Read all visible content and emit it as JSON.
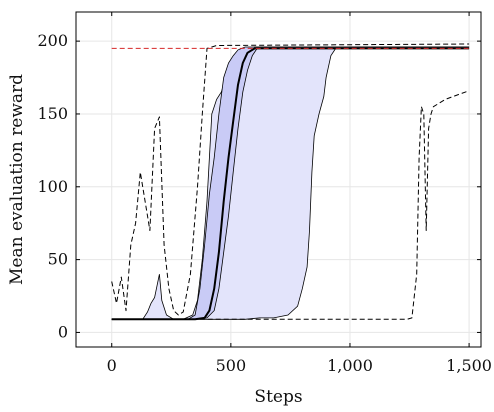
{
  "chart_data": {
    "type": "line",
    "xlabel": "Steps",
    "ylabel": "Mean evaluation reward",
    "xlim": [
      -150,
      1550
    ],
    "ylim": [
      -10,
      220
    ],
    "xticks": [
      0,
      500,
      1000,
      1500
    ],
    "xtick_labels": [
      "0",
      "500",
      "1,000",
      "1,500"
    ],
    "yticks": [
      0,
      50,
      100,
      150,
      200
    ],
    "ytick_labels": [
      "0",
      "50",
      "100",
      "150",
      "200"
    ],
    "grid": true,
    "colors": {
      "outer_band": "#e3e4fb",
      "inner_band": "#c9cbf6",
      "band_edge": "#000000",
      "median": "#000000",
      "max_min": "#000000",
      "reference": "#d62728"
    },
    "bands": [
      {
        "role": "outer",
        "lower": [
          [
            0,
            9
          ],
          [
            300,
            9
          ],
          [
            450,
            9
          ],
          [
            560,
            9
          ],
          [
            620,
            10
          ],
          [
            680,
            10
          ],
          [
            740,
            12
          ],
          [
            780,
            18
          ],
          [
            800,
            30
          ],
          [
            820,
            45
          ],
          [
            830,
            70
          ],
          [
            840,
            110
          ],
          [
            850,
            135
          ],
          [
            870,
            150
          ],
          [
            890,
            162
          ],
          [
            900,
            175
          ],
          [
            920,
            190
          ],
          [
            940,
            195
          ],
          [
            1000,
            196
          ],
          [
            1500,
            196
          ]
        ],
        "upper": [
          [
            0,
            9
          ],
          [
            130,
            9
          ],
          [
            150,
            14
          ],
          [
            165,
            20
          ],
          [
            180,
            24
          ],
          [
            200,
            40
          ],
          [
            210,
            22
          ],
          [
            230,
            12
          ],
          [
            260,
            9
          ],
          [
            300,
            9
          ],
          [
            340,
            12
          ],
          [
            360,
            22
          ],
          [
            380,
            50
          ],
          [
            400,
            90
          ],
          [
            410,
            120
          ],
          [
            420,
            150
          ],
          [
            440,
            160
          ],
          [
            460,
            165
          ],
          [
            480,
            175
          ],
          [
            500,
            180
          ],
          [
            520,
            186
          ],
          [
            540,
            188
          ],
          [
            560,
            192
          ],
          [
            600,
            196
          ],
          [
            1500,
            196
          ]
        ]
      },
      {
        "role": "inner",
        "lower": [
          [
            0,
            9
          ],
          [
            350,
            9
          ],
          [
            400,
            10
          ],
          [
            430,
            15
          ],
          [
            450,
            30
          ],
          [
            470,
            55
          ],
          [
            490,
            80
          ],
          [
            510,
            110
          ],
          [
            530,
            140
          ],
          [
            550,
            165
          ],
          [
            570,
            180
          ],
          [
            590,
            190
          ],
          [
            610,
            195
          ],
          [
            1500,
            195
          ]
        ],
        "upper": [
          [
            0,
            9
          ],
          [
            320,
            9
          ],
          [
            350,
            12
          ],
          [
            370,
            30
          ],
          [
            390,
            60
          ],
          [
            410,
            95
          ],
          [
            430,
            120
          ],
          [
            450,
            150
          ],
          [
            470,
            175
          ],
          [
            490,
            185
          ],
          [
            510,
            190
          ],
          [
            530,
            194
          ],
          [
            560,
            196
          ],
          [
            1500,
            196
          ]
        ]
      }
    ],
    "series": [
      {
        "role": "median",
        "style": "solid",
        "points": [
          [
            0,
            9
          ],
          [
            350,
            9
          ],
          [
            390,
            10
          ],
          [
            410,
            15
          ],
          [
            430,
            30
          ],
          [
            450,
            55
          ],
          [
            470,
            90
          ],
          [
            490,
            120
          ],
          [
            510,
            145
          ],
          [
            530,
            170
          ],
          [
            550,
            185
          ],
          [
            570,
            192
          ],
          [
            600,
            195
          ],
          [
            1500,
            195
          ]
        ]
      },
      {
        "role": "max",
        "style": "dashed",
        "points": [
          [
            0,
            35
          ],
          [
            20,
            20
          ],
          [
            40,
            38
          ],
          [
            60,
            15
          ],
          [
            80,
            60
          ],
          [
            100,
            75
          ],
          [
            120,
            110
          ],
          [
            140,
            90
          ],
          [
            160,
            70
          ],
          [
            180,
            140
          ],
          [
            200,
            148
          ],
          [
            220,
            60
          ],
          [
            240,
            30
          ],
          [
            260,
            15
          ],
          [
            280,
            12
          ],
          [
            300,
            14
          ],
          [
            330,
            40
          ],
          [
            360,
            100
          ],
          [
            380,
            150
          ],
          [
            400,
            195
          ],
          [
            420,
            196
          ],
          [
            440,
            197
          ],
          [
            1500,
            198
          ]
        ]
      },
      {
        "role": "min",
        "style": "dashed",
        "points": [
          [
            0,
            9
          ],
          [
            1240,
            9
          ],
          [
            1260,
            10
          ],
          [
            1280,
            40
          ],
          [
            1290,
            120
          ],
          [
            1300,
            155
          ],
          [
            1310,
            150
          ],
          [
            1320,
            70
          ],
          [
            1330,
            140
          ],
          [
            1340,
            150
          ],
          [
            1350,
            155
          ],
          [
            1400,
            160
          ],
          [
            1450,
            163
          ],
          [
            1500,
            166
          ]
        ]
      },
      {
        "role": "reference",
        "style": "dashed",
        "points": [
          [
            0,
            195
          ],
          [
            1500,
            195
          ]
        ]
      }
    ]
  }
}
